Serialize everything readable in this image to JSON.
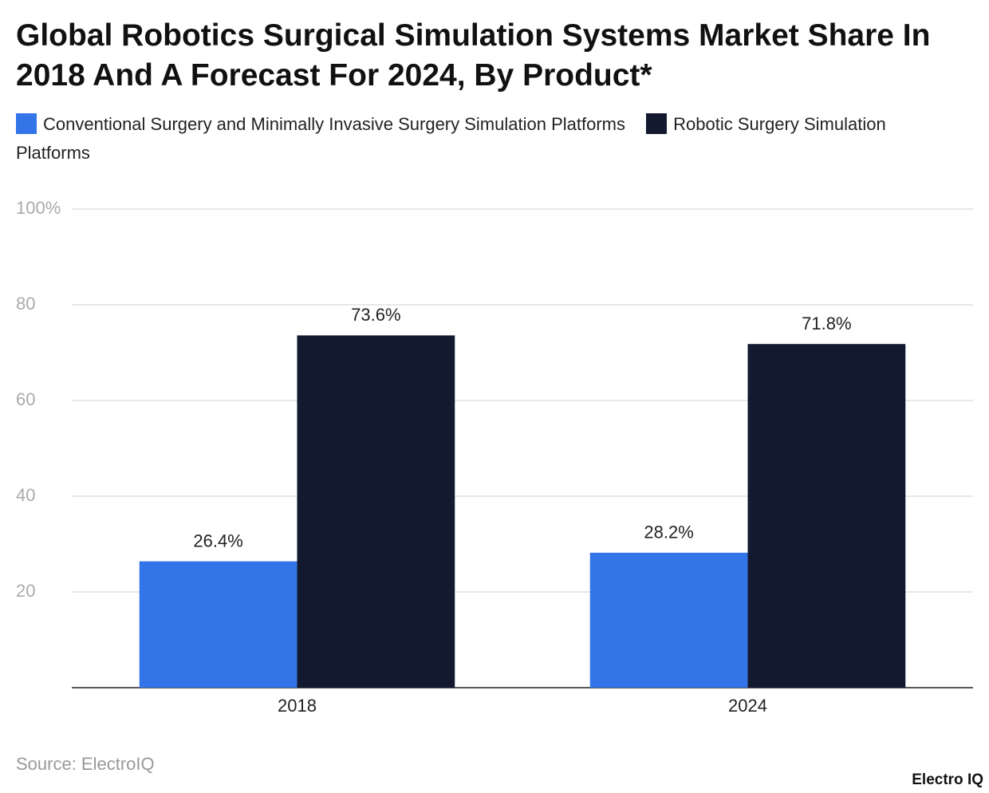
{
  "chart_data": {
    "type": "bar",
    "title": "Global Robotics Surgical Simulation Systems Market Share In 2018 And A Forecast For 2024, By Product*",
    "categories": [
      "2018",
      "2024"
    ],
    "series": [
      {
        "name": "Conventional Surgery and Minimally Invasive Surgery Simulation Platforms",
        "color": "#3375e8",
        "values": [
          26.4,
          28.2
        ],
        "value_labels": [
          "26.4%",
          "28.2%"
        ]
      },
      {
        "name": "Robotic Surgery Simulation Platforms",
        "color": "#131a30",
        "values": [
          73.6,
          71.8
        ],
        "value_labels": [
          "73.6%",
          "71.8%"
        ]
      }
    ],
    "ylim": [
      0,
      100
    ],
    "yticks": [
      20,
      40,
      60,
      80,
      {
        "value": 100,
        "label": "100%"
      }
    ],
    "grid": true,
    "legend": "top",
    "source": "Source: ElectroIQ",
    "brand": "Electro IQ"
  }
}
